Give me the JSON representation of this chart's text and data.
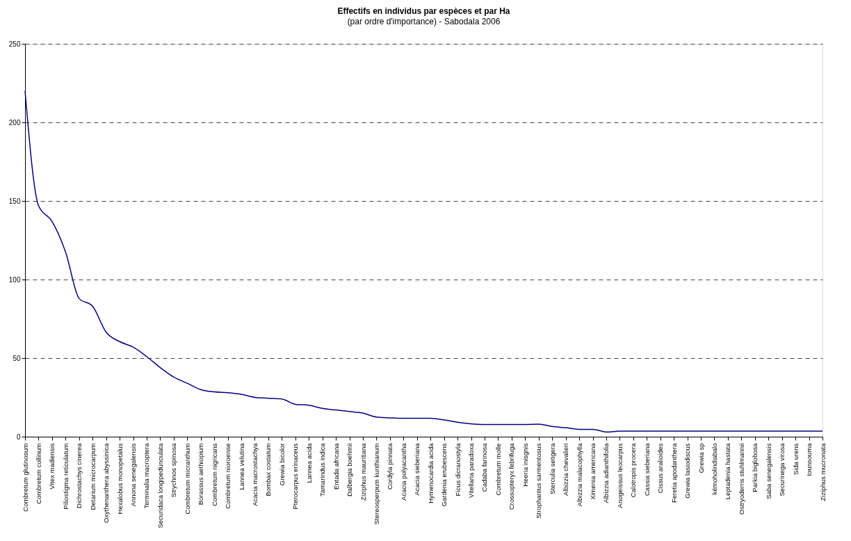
{
  "chart_data": {
    "type": "line",
    "title": "Effectifs en individus par espèces et par Ha",
    "subtitle": "(par ordre d'importance) - Sabodala 2006",
    "categories": [
      "Combretum  glutinosum",
      "Combretum  collinum",
      "Vitex  madiensis",
      "Piliostigma reticulatum",
      "Dichrostachys cinerea",
      "Detarium microcarpum",
      "Oxythenanthera  abyssinica",
      "Hexalobus monopetalus",
      "Annona senegalensis",
      "Terminalia  macroptera",
      "Securidaca longipedunculata",
      "Strychnos spinosa",
      "Combretum  micranthum",
      "Borassus aethiopium",
      "Combretum  nigricans",
      "Combretum  nioroense",
      "Lannea velutina",
      "Acacia  macrostachya",
      "Bombax costatum",
      "Grewia bicolor",
      "Pterocarpus erinaceus",
      "Lannea  acida",
      "Tamarindus indica",
      "Entada africana",
      "Dalbergia boehmii",
      "Ziziphus mauritiana",
      "Stereosperpum  kunthianum",
      "Cordyla pinnata",
      "Acacia polyacantha",
      "Acacia  sieberiana",
      "Hymenocardia acida",
      "Gardenia erubescens",
      "Ficus dicranostyla",
      "Vitellaria paradoxa",
      "Cadaba farinosa",
      "Combretum  molle",
      "Crossopteryx febrifuga",
      "Heeria inisgnis",
      "Strophantus  sarmentosus",
      "Sterculia setigera",
      "Albizzia  chevalieri",
      "Albizzia malacophylla",
      "Ximenia americana",
      "Albizzia adianthifolia",
      "Anogeissus leocarpus",
      "Calotropis procera",
      "Cassia  sieberiana",
      "Cissus aralioides",
      "Feretia apodanthera",
      "Grewia lasiodiscus",
      "Grewia sp",
      "kémoholindiabalo",
      "Leptadenia  hastata",
      "Ostryoderris stuhlmannii",
      "Parkia biglobosa",
      "Saba senegalensis",
      "Securinega virosa",
      "Sida urens",
      "tounsouma",
      "Ziziphus mucronata"
    ],
    "series": [
      {
        "color": "#000080",
        "values": [
          220,
          147,
          137,
          117.5,
          88,
          83,
          66.5,
          60.5,
          57,
          51,
          44,
          38,
          34,
          30,
          28.5,
          28,
          27,
          25,
          24.5,
          24,
          20.6,
          20,
          18,
          17,
          16,
          15,
          12.5,
          12,
          11.7,
          11.7,
          11.7,
          10.7,
          9.2,
          8.2,
          7.7,
          7.7,
          7.7,
          7.7,
          8,
          6.5,
          5.7,
          4.7,
          4.7,
          3,
          3.5,
          3.5,
          3.5,
          3.5,
          3.5,
          3.5,
          3.5,
          3.5,
          3.5,
          3.5,
          3.5,
          3.5,
          3.5,
          3.5,
          3.5,
          3.5
        ]
      }
    ],
    "ylim": [
      0,
      250
    ],
    "yticks": [
      0,
      50,
      100,
      150,
      200,
      250
    ],
    "grid": "y",
    "marker": "none",
    "line_style": "solid"
  }
}
